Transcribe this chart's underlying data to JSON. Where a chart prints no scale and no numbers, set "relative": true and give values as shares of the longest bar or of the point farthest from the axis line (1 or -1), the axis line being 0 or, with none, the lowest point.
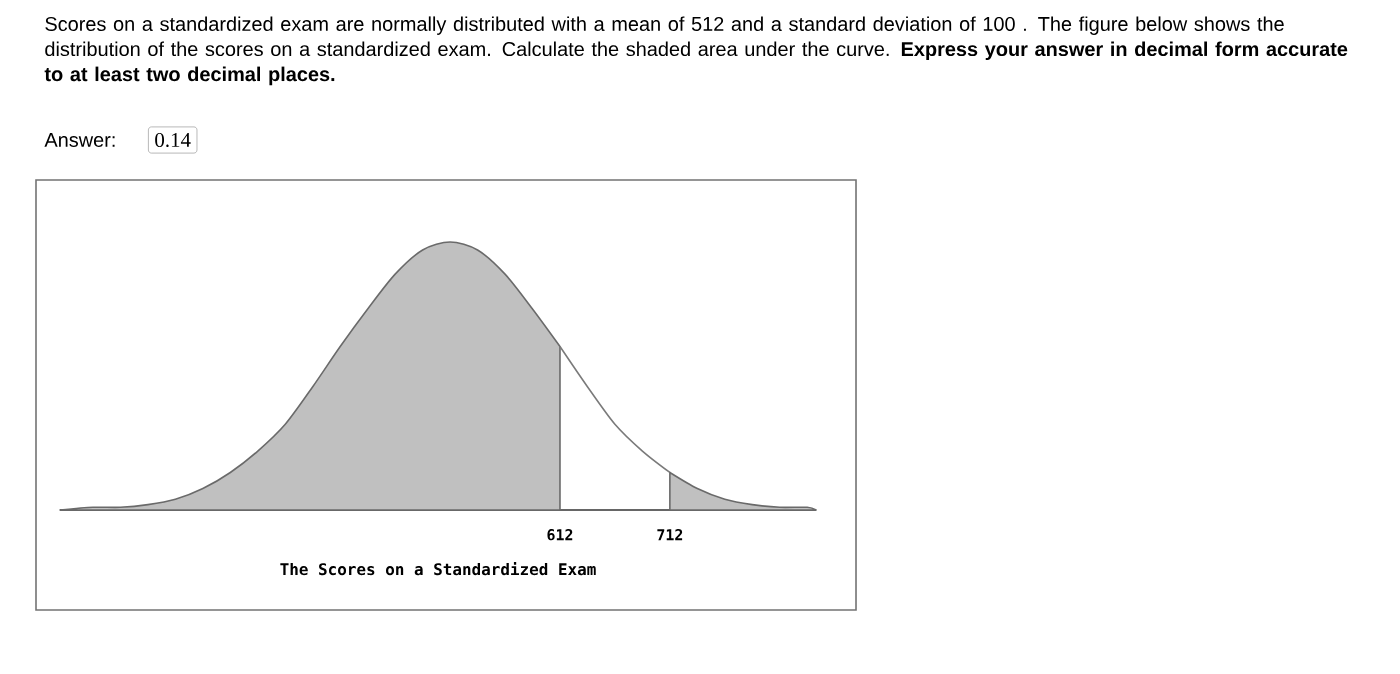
{
  "chart_data": {
    "type": "area",
    "title": "Scores on a standardized exam are normally distributed with a mean of 512 and a standard deviation of 100 . The figure below shows the distribution of the scores on a standardized exam. Calculate the shaded area under the curve. **Express your answer in decimal form accurate to at least two decimal places.**",
    "annotations": [
      "Answer:",
      "0.14"
    ],
    "xlabel": "The Scores on a Standardized Exam",
    "relative": true,
    "xlim": [
      157,
      845
    ],
    "xticks": [
      612,
      712
    ],
    "tick_labels": "x",
    "series": [
      {
        "color": "#c0c0c0",
        "x": [
          157,
          187,
          212,
          237,
          262,
          287,
          312,
          337,
          362,
          387,
          412,
          437,
          462,
          487,
          512,
          537,
          562,
          587,
          612
        ],
        "values": [
          0.0,
          0.01,
          0.01,
          0.02,
          0.04,
          0.08,
          0.14,
          0.22,
          0.32,
          0.46,
          0.61,
          0.75,
          0.88,
          0.97,
          1,
          0.97,
          0.88,
          0.75,
          0.61
        ]
      },
      {
        "type": "line",
        "color": "#7a7a7a",
        "x": [
          612,
          637,
          662,
          687,
          712
        ],
        "values": [
          0.61,
          0.46,
          0.32,
          0.22,
          0.14
        ]
      },
      {
        "color": "#c0c0c0",
        "x": [
          712,
          737,
          762,
          787,
          812,
          837,
          845
        ],
        "values": [
          0.14,
          0.08,
          0.04,
          0.02,
          0.01,
          0.01,
          0.0
        ]
      }
    ]
  }
}
